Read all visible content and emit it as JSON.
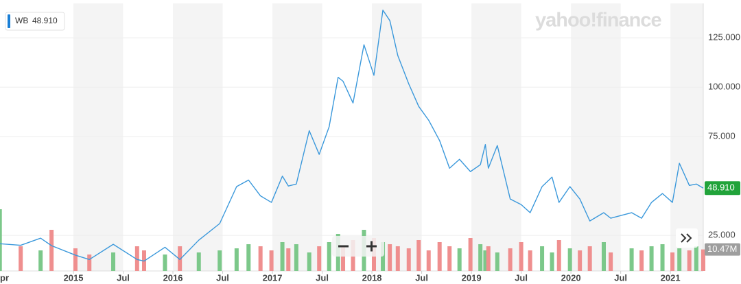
{
  "chart_data": {
    "type": "line",
    "logo": "yahoo!finance",
    "x": [
      2014.26,
      2014.47,
      2014.67,
      2014.78,
      2015.02,
      2015.16,
      2015.4,
      2015.64,
      2015.71,
      2015.92,
      2016.07,
      2016.26,
      2016.47,
      2016.64,
      2016.76,
      2016.88,
      2016.99,
      2017.1,
      2017.16,
      2017.24,
      2017.37,
      2017.47,
      2017.57,
      2017.66,
      2017.71,
      2017.81,
      2017.92,
      2018.02,
      2018.11,
      2018.18,
      2018.26,
      2018.37,
      2018.47,
      2018.57,
      2018.68,
      2018.78,
      2018.88,
      2018.99,
      2019.09,
      2019.14,
      2019.17,
      2019.26,
      2019.39,
      2019.5,
      2019.59,
      2019.71,
      2019.81,
      2019.88,
      2019.99,
      2020.09,
      2020.19,
      2020.33,
      2020.4,
      2020.61,
      2020.71,
      2020.81,
      2020.92,
      2021.02,
      2021.09,
      2021.19,
      2021.26,
      2021.33
    ],
    "series": [
      {
        "name": "WB",
        "color": "#3a98db",
        "last_label": "48.910",
        "values": [
          20.8,
          20,
          23.6,
          19.8,
          15,
          12.8,
          20.5,
          12.8,
          12,
          19,
          12.8,
          22.6,
          31,
          49.7,
          53,
          45,
          41.7,
          55,
          50,
          51,
          78,
          66,
          80,
          105,
          103,
          92,
          121.5,
          106,
          139,
          133.7,
          116,
          101.7,
          90.3,
          83.3,
          73,
          59,
          63.5,
          57.3,
          60.8,
          71,
          59,
          70.5,
          43.4,
          40.6,
          36.5,
          49.7,
          54.5,
          41.7,
          49.7,
          43.4,
          32.3,
          36.5,
          33.7,
          36.5,
          33.7,
          41.7,
          46.2,
          41.7,
          61.5,
          50.3,
          51,
          48.91
        ]
      }
    ],
    "volume": {
      "label": "10.47M",
      "vlim": [
        0,
        130
      ],
      "up_color": "#7cc88a",
      "down_color": "#ef8f8f",
      "values": [
        30,
        12,
        10,
        20,
        11,
        8,
        9,
        12,
        10,
        8,
        12,
        9,
        10,
        11,
        13,
        12,
        10,
        14,
        11,
        13,
        9,
        12,
        14,
        18,
        12,
        15,
        20,
        16,
        14,
        13,
        12,
        11,
        15,
        10,
        14,
        12,
        11,
        16,
        13,
        10,
        12,
        9,
        11,
        14,
        10,
        12,
        9,
        15,
        11,
        10,
        12,
        14,
        9,
        11,
        10,
        12,
        13,
        9,
        11,
        10,
        12,
        10.47
      ]
    },
    "xlim": [
      2014.262,
      2021.33
    ],
    "xticks": [
      {
        "value": 2014.25,
        "label": "pr"
      },
      2015,
      {
        "value": 2015.5,
        "label": "Jul"
      },
      2016,
      {
        "value": 2016.5,
        "label": "Jul"
      },
      2017,
      {
        "value": 2017.5,
        "label": "Jul"
      },
      2018,
      {
        "value": 2018.5,
        "label": "Jul"
      },
      2019,
      {
        "value": 2019.5,
        "label": "Jul"
      },
      2020,
      {
        "value": 2020.5,
        "label": "Jul"
      },
      2021
    ],
    "ylim": [
      7,
      142.4
    ],
    "yticks": [
      {
        "value": 25,
        "label": "25.000"
      },
      {
        "value": 75,
        "label": "75.000"
      },
      {
        "value": 100,
        "label": "100.000"
      },
      {
        "value": 125,
        "label": "125.000"
      }
    ],
    "grid": true
  }
}
